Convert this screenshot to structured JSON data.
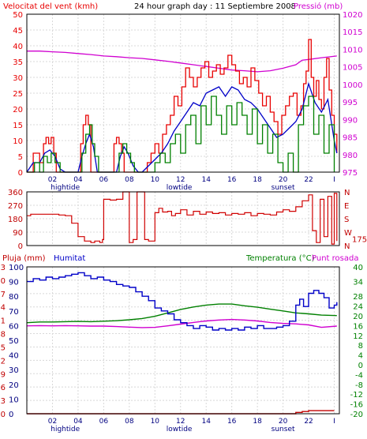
{
  "header": {
    "left_title": "Velocitat del vent (kmh)",
    "center_title": "24 hour graph day : 11 Septiembre 2008",
    "right_title": "Pressió (mb)"
  },
  "colors": {
    "wind_max": "#e80000",
    "wind_avg": "#0000c8",
    "wind_min": "#008000",
    "pressure": "#d000d0",
    "direction": "#d00000",
    "rain": "#c00000",
    "humidity": "#0000c8",
    "temperature": "#008000",
    "dewpoint": "#d000d0",
    "grid": "#d8d8d8",
    "frame": "#000000"
  },
  "chart_data": [
    {
      "id": "wind",
      "type": "line",
      "title": "24 hour graph day : 11 Septiembre 2008",
      "xlabel": "",
      "ylabel": "Velocitat del vent (kmh)",
      "ylabel_right": "Pressió (mb)",
      "x_tick_labels": [
        "02",
        "04",
        "06",
        "08",
        "10",
        "12",
        "14",
        "16",
        "18",
        "20",
        "22",
        "I"
      ],
      "x_annotations": [
        {
          "label": "hightide",
          "x": 3.0
        },
        {
          "label": "lowtide",
          "x": 11.9
        },
        {
          "label": "sunset",
          "x": 20.0
        }
      ],
      "xlim": [
        0,
        24.4
      ],
      "ylim": [
        0,
        50
      ],
      "yticks": [
        0,
        5,
        10,
        15,
        20,
        25,
        30,
        35,
        40,
        45,
        50
      ],
      "ylim_right": [
        975,
        1020
      ],
      "yticks_right": [
        975,
        980,
        985,
        990,
        995,
        1000,
        1005,
        1010,
        1015,
        1020
      ],
      "grid": true,
      "series": [
        {
          "key": "max",
          "axis": "left",
          "step": true,
          "x": [
            0,
            0.5,
            0.9,
            1.0,
            1.3,
            1.5,
            1.7,
            1.9,
            2.1,
            2.3,
            2.5,
            2.8,
            3.0,
            4.0,
            4.2,
            4.4,
            4.6,
            4.8,
            5.0,
            5.3,
            5.6,
            6.0,
            6.4,
            6.8,
            7.0,
            7.2,
            7.4,
            7.6,
            7.9,
            8.1,
            8.4,
            8.7,
            9.0,
            9.4,
            9.7,
            10.0,
            10.3,
            10.6,
            10.9,
            11.2,
            11.5,
            11.8,
            12.1,
            12.4,
            12.7,
            13.0,
            13.3,
            13.6,
            13.9,
            14.2,
            14.5,
            14.8,
            15.1,
            15.4,
            15.7,
            16.0,
            16.3,
            16.6,
            16.9,
            17.2,
            17.5,
            17.8,
            18.1,
            18.4,
            18.7,
            19.0,
            19.3,
            19.6,
            19.9,
            20.2,
            20.5,
            20.8,
            21.1,
            21.4,
            21.6,
            21.8,
            22.0,
            22.2,
            22.4,
            22.6,
            22.8,
            23.0,
            23.2,
            23.4,
            23.6,
            23.8,
            24.0,
            24.2
          ],
          "values": [
            0,
            6,
            6,
            3,
            9,
            11,
            9,
            11,
            6,
            0,
            0,
            0,
            0,
            0,
            9,
            15,
            18,
            15,
            0,
            0,
            0,
            0,
            0,
            9,
            11,
            9,
            6,
            0,
            0,
            0,
            0,
            0,
            0,
            3,
            6,
            9,
            6,
            12,
            15,
            18,
            24,
            21,
            27,
            33,
            30,
            27,
            30,
            33,
            35,
            30,
            32,
            34,
            31,
            33,
            37,
            34,
            32,
            28,
            30,
            27,
            33,
            29,
            25,
            21,
            24,
            19,
            16,
            12,
            18,
            21,
            24,
            25,
            18,
            21,
            28,
            32,
            42,
            30,
            24,
            29,
            23,
            20,
            30,
            36,
            26,
            18,
            12,
            6
          ]
        },
        {
          "key": "avg",
          "axis": "left",
          "step": false,
          "x": [
            0,
            0.5,
            1.0,
            1.4,
            1.8,
            2.2,
            2.6,
            3.0,
            4.0,
            4.3,
            4.6,
            4.9,
            5.2,
            5.5,
            6.0,
            6.5,
            7.0,
            7.3,
            7.6,
            7.9,
            8.3,
            8.7,
            9.0,
            9.5,
            10.0,
            10.5,
            11.0,
            11.5,
            12.0,
            12.5,
            13.0,
            13.5,
            14.0,
            14.5,
            15.0,
            15.5,
            16.0,
            16.5,
            17.0,
            17.5,
            18.0,
            18.5,
            19.0,
            19.5,
            20.0,
            20.5,
            21.0,
            21.5,
            22.0,
            22.5,
            23.0,
            23.5,
            24.0,
            24.2
          ],
          "values": [
            0,
            3,
            3,
            6,
            7,
            5,
            1,
            0,
            0,
            5,
            9,
            12,
            8,
            0,
            0,
            0,
            0,
            5,
            8,
            6,
            2,
            0,
            0,
            2,
            4,
            6,
            9,
            13,
            16,
            19,
            22,
            21,
            25,
            26,
            27,
            24,
            27,
            26,
            23,
            22,
            20,
            17,
            14,
            11,
            12,
            14,
            16,
            20,
            28,
            22,
            19,
            23,
            10,
            6
          ]
        },
        {
          "key": "min",
          "axis": "left",
          "step": true,
          "x": [
            0,
            0.6,
            1.0,
            1.3,
            1.6,
            1.9,
            2.2,
            2.6,
            3.0,
            4.0,
            4.3,
            4.6,
            4.9,
            5.1,
            5.3,
            5.6,
            6.0,
            6.5,
            7.0,
            7.2,
            7.5,
            7.8,
            8.1,
            8.4,
            9.0,
            9.6,
            10.0,
            10.4,
            10.8,
            11.2,
            11.6,
            12.0,
            12.4,
            12.8,
            13.2,
            13.6,
            14.0,
            14.4,
            14.8,
            15.2,
            15.6,
            16.0,
            16.4,
            16.8,
            17.2,
            17.6,
            18.0,
            18.4,
            18.8,
            19.2,
            19.6,
            20.0,
            20.4,
            20.8,
            21.2,
            21.6,
            22.0,
            22.4,
            22.8,
            23.2,
            23.6,
            24.0
          ],
          "values": [
            0,
            3,
            0,
            5,
            3,
            6,
            3,
            0,
            0,
            0,
            6,
            12,
            15,
            9,
            5,
            0,
            0,
            0,
            0,
            6,
            9,
            6,
            3,
            0,
            0,
            0,
            3,
            6,
            3,
            9,
            12,
            6,
            15,
            18,
            9,
            21,
            15,
            24,
            18,
            12,
            21,
            15,
            22,
            18,
            12,
            20,
            9,
            15,
            6,
            12,
            3,
            0,
            6,
            0,
            15,
            21,
            24,
            12,
            18,
            6,
            15,
            0
          ]
        },
        {
          "key": "pressure",
          "axis": "right",
          "step": false,
          "x": [
            0,
            1,
            2,
            3,
            4,
            5,
            6,
            7,
            8,
            9,
            10,
            11,
            12,
            13,
            14,
            15,
            16,
            17,
            18,
            19,
            20,
            21,
            21.5,
            22,
            23,
            24.2
          ],
          "values": [
            1009.5,
            1009.5,
            1009.3,
            1009.1,
            1008.8,
            1008.5,
            1008.1,
            1007.9,
            1007.6,
            1007.4,
            1007.0,
            1006.6,
            1006.1,
            1005.6,
            1005.1,
            1004.6,
            1004.1,
            1003.9,
            1003.6,
            1003.9,
            1004.6,
            1005.6,
            1006.9,
            1007.1,
            1007.6,
            1008.1
          ]
        }
      ]
    },
    {
      "id": "direction",
      "type": "line",
      "title": "",
      "ylabel": "",
      "xlim": [
        0,
        24.4
      ],
      "ylim": [
        0,
        360
      ],
      "yticks": [
        0,
        90,
        180,
        270,
        360
      ],
      "right_labels": [
        "N",
        "W",
        "S",
        "E",
        "N"
      ],
      "right_extra_label": "175",
      "grid": true,
      "series": [
        {
          "key": "direction",
          "step": true,
          "x": [
            0,
            0.3,
            2.5,
            3.0,
            3.5,
            4.0,
            4.5,
            5.0,
            5.3,
            5.7,
            5.9,
            6.0,
            6.5,
            7.0,
            7.5,
            7.8,
            8.0,
            8.3,
            8.6,
            8.9,
            9.2,
            9.5,
            9.8,
            10.0,
            10.3,
            10.6,
            11.0,
            11.3,
            11.6,
            12.0,
            12.5,
            13.0,
            13.5,
            14.0,
            14.5,
            15.0,
            15.5,
            16.0,
            16.5,
            17.0,
            17.5,
            18.0,
            18.5,
            19.0,
            19.5,
            20.0,
            20.5,
            21.0,
            21.5,
            22.0,
            22.3,
            22.6,
            22.9,
            23.2,
            23.5,
            23.8,
            24.0,
            24.2
          ],
          "values": [
            200,
            210,
            205,
            200,
            150,
            60,
            30,
            20,
            30,
            20,
            40,
            310,
            305,
            310,
            360,
            360,
            20,
            40,
            360,
            360,
            40,
            30,
            30,
            220,
            250,
            225,
            230,
            200,
            215,
            240,
            205,
            230,
            210,
            225,
            215,
            220,
            205,
            215,
            210,
            220,
            200,
            215,
            210,
            205,
            225,
            240,
            230,
            260,
            300,
            340,
            100,
            20,
            310,
            60,
            330,
            10,
            350,
            30
          ]
        }
      ]
    },
    {
      "id": "humidity_temperature",
      "type": "line",
      "title": "",
      "ylabel": "Pluja (mm)",
      "ylabel_humidity": "Humitat",
      "ylabel_right": "Temperatura (°C)",
      "ylabel_right_secondary": "Punt rosada",
      "x_tick_labels": [
        "02",
        "04",
        "06",
        "08",
        "10",
        "12",
        "14",
        "16",
        "18",
        "20",
        "22",
        "I"
      ],
      "x_annotations": [
        {
          "label": "hightide",
          "x": 3.0
        },
        {
          "label": "lowtide",
          "x": 11.9
        },
        {
          "label": "sunset",
          "x": 20.0
        }
      ],
      "xlim": [
        0,
        24.4
      ],
      "ylim_rain": [
        0,
        33
      ],
      "yticks_rain": [
        0,
        3,
        6,
        9,
        12,
        15,
        18,
        21,
        24,
        27,
        30,
        33
      ],
      "ylim_humidity": [
        0,
        100
      ],
      "yticks_humidity": [
        0,
        10,
        20,
        30,
        40,
        50,
        60,
        70,
        80,
        90,
        100
      ],
      "ylim_right": [
        -20,
        40
      ],
      "yticks_right": [
        -20,
        -16,
        -12,
        -8,
        -4,
        0,
        4,
        8,
        12,
        16,
        20,
        24,
        28,
        34,
        40
      ],
      "grid": true,
      "series": [
        {
          "key": "rain",
          "axis": "rain",
          "step": true,
          "x": [
            0,
            21.0,
            21.5,
            22.0,
            24.0
          ],
          "values": [
            0,
            0.3,
            0.5,
            0.7,
            0.7
          ]
        },
        {
          "key": "humidity",
          "axis": "humidity",
          "step": true,
          "x": [
            0,
            0.5,
            1.0,
            1.5,
            2.0,
            2.5,
            3.0,
            3.5,
            4.0,
            4.5,
            5.0,
            5.5,
            6.0,
            6.5,
            7.0,
            7.5,
            8.0,
            8.5,
            9.0,
            9.5,
            10.0,
            10.5,
            11.0,
            11.5,
            12.0,
            12.5,
            13.0,
            13.5,
            14.0,
            14.5,
            15.0,
            15.5,
            16.0,
            16.5,
            17.0,
            17.5,
            18.0,
            18.5,
            19.0,
            19.5,
            20.0,
            20.5,
            21.0,
            21.3,
            21.6,
            22.0,
            22.4,
            22.8,
            23.2,
            23.6,
            24.0,
            24.2
          ],
          "values": [
            90,
            92,
            91,
            93,
            92,
            93,
            94,
            95,
            96,
            94,
            92,
            93,
            91,
            90,
            88,
            87,
            86,
            83,
            80,
            77,
            72,
            70,
            68,
            64,
            62,
            60,
            58,
            60,
            59,
            57,
            58,
            57,
            58,
            57,
            59,
            58,
            60,
            58,
            58,
            59,
            60,
            63,
            74,
            78,
            73,
            82,
            84,
            82,
            79,
            72,
            74,
            76
          ]
        },
        {
          "key": "temperature",
          "axis": "right",
          "step": false,
          "x": [
            0,
            1,
            2,
            3,
            4,
            5,
            6,
            7,
            8,
            9,
            10,
            11,
            12,
            13,
            14,
            15,
            16,
            17,
            18,
            19,
            20,
            21,
            22,
            23,
            24.2
          ],
          "values": [
            17.2,
            17.5,
            17.5,
            17.6,
            17.7,
            17.6,
            17.8,
            18.0,
            18.4,
            18.9,
            19.8,
            21.2,
            22.6,
            23.6,
            24.4,
            24.8,
            24.8,
            24.1,
            23.5,
            22.7,
            22.0,
            21.2,
            20.8,
            20.3,
            20.1
          ]
        },
        {
          "key": "dewpoint",
          "axis": "right",
          "step": false,
          "x": [
            0,
            1,
            2,
            3,
            4,
            5,
            6,
            7,
            8,
            9,
            10,
            11,
            12,
            13,
            14,
            15,
            16,
            17,
            18,
            19,
            20,
            21,
            22,
            23,
            24.2
          ],
          "values": [
            15.9,
            16.0,
            15.9,
            16.0,
            15.9,
            15.8,
            15.8,
            15.6,
            15.4,
            15.2,
            15.3,
            15.9,
            16.6,
            17.3,
            17.9,
            18.3,
            18.5,
            18.3,
            17.9,
            17.3,
            16.9,
            16.7,
            16.3,
            15.3,
            15.8
          ]
        }
      ]
    }
  ]
}
